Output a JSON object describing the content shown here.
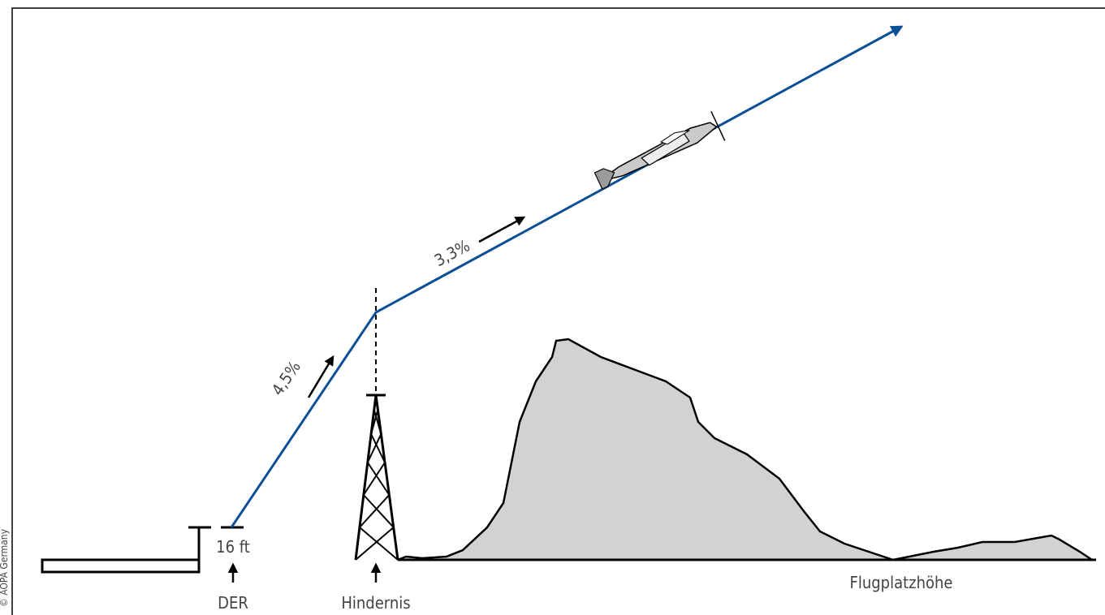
{
  "labels": {
    "height": "16 ft",
    "der": "DER",
    "obstacle": "Hindernis",
    "gradient_1": "4,5%",
    "gradient_2": "3,3%",
    "elevation": "Flugplatzhöhe",
    "copyright": "© AOPA Germany"
  }
}
